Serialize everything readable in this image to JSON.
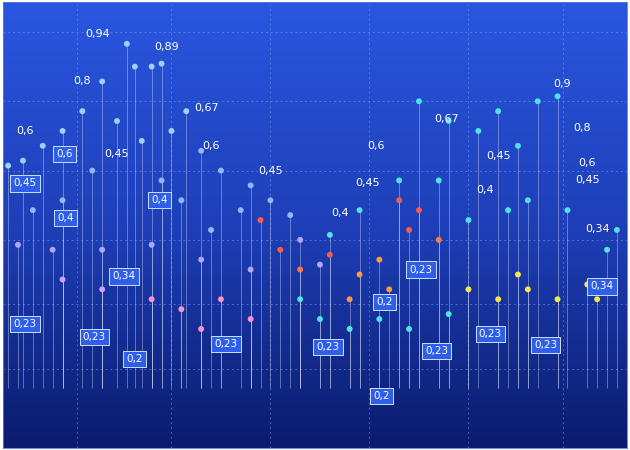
{
  "chart_data": {
    "type": "scatter",
    "x": [
      125,
      150,
      160,
      133,
      100,
      80,
      60,
      40,
      20,
      5,
      115,
      140,
      170,
      185,
      200,
      220,
      250,
      270,
      290,
      240,
      210,
      180,
      160,
      90,
      60,
      30,
      15,
      50,
      100,
      150,
      200,
      250,
      300,
      320,
      260,
      280,
      300,
      330,
      360,
      390,
      400,
      410,
      420,
      440,
      380,
      350,
      420,
      450,
      480,
      500,
      520,
      540,
      560,
      510,
      470,
      440,
      400,
      360,
      330,
      300,
      320,
      350,
      380,
      410,
      450,
      470,
      500,
      530,
      560,
      590,
      600,
      520,
      150,
      180,
      220,
      250,
      200,
      100,
      60,
      530,
      570,
      610,
      620
    ],
    "values": [
      408,
      385,
      388,
      385,
      370,
      340,
      320,
      305,
      290,
      285,
      330,
      310,
      320,
      340,
      300,
      280,
      265,
      250,
      235,
      240,
      220,
      250,
      270,
      280,
      250,
      240,
      205,
      200,
      200,
      205,
      190,
      180,
      210,
      185,
      230,
      200,
      180,
      195,
      175,
      160,
      250,
      220,
      240,
      210,
      190,
      150,
      350,
      330,
      320,
      340,
      305,
      350,
      355,
      240,
      230,
      270,
      270,
      240,
      215,
      150,
      130,
      120,
      130,
      120,
      135,
      160,
      150,
      160,
      150,
      165,
      150,
      175,
      150,
      140,
      150,
      130,
      120,
      160,
      170,
      250,
      240,
      200,
      220
    ],
    "colors": [
      "#9fd0ff",
      "#9fd0ff",
      "#9fd0ff",
      "#9fd0ff",
      "#9fd0ff",
      "#9fd0ff",
      "#9fd0ff",
      "#9fd0ff",
      "#9fd0ff",
      "#9fd0ff",
      "#9fd0ff",
      "#9fd0ff",
      "#9fd0ff",
      "#9fd0ff",
      "#8fb8ff",
      "#8fb8ff",
      "#8fb8ff",
      "#8fb8ff",
      "#8fb8ff",
      "#8fb8ff",
      "#8fb8ff",
      "#8fb8ff",
      "#8fb8ff",
      "#8fb8ff",
      "#8fb8ff",
      "#8fb8ff",
      "#b0a8ff",
      "#b0a8ff",
      "#b0a8ff",
      "#b0a8ff",
      "#b0a8ff",
      "#b0a8ff",
      "#b0a8ff",
      "#b0a8ff",
      "#ff5a4a",
      "#ff5a4a",
      "#ff7a4a",
      "#ff5a4a",
      "#ff9a3c",
      "#ff9a3c",
      "#ff5a4a",
      "#ff5a4a",
      "#ff5a4a",
      "#ff7a4a",
      "#ff9a3c",
      "#ff9a3c",
      "#4fe3e6",
      "#4fe3e6",
      "#4fe3e6",
      "#4fe3e6",
      "#4fe3e6",
      "#4fe3e6",
      "#4fe3e6",
      "#4fe3e6",
      "#4fe3e6",
      "#4fe3e6",
      "#4fe3e6",
      "#4fe3e6",
      "#4fe3e6",
      "#4fe3e6",
      "#4fe3e6",
      "#4fe3e6",
      "#4fe3e6",
      "#4fe3e6",
      "#4fe3e6",
      "#f5e84a",
      "#f5e84a",
      "#f5e84a",
      "#f5e84a",
      "#f5e84a",
      "#f5e84a",
      "#f5e84a",
      "#ff8fd0",
      "#ff8fd0",
      "#ff8fd0",
      "#ff8fd0",
      "#ff8fd0",
      "#d0a0ff",
      "#d0a0ff",
      "#4fe3e6",
      "#4fe3e6",
      "#4fe3e6",
      "#4fe3e6"
    ],
    "baseline": 60,
    "xlim": [
      0,
      630
    ],
    "ylim": [
      0,
      450
    ],
    "xticks": [
      75,
      170,
      270,
      370,
      470,
      565
    ],
    "yticks": [
      80,
      145,
      210,
      280,
      350,
      420
    ],
    "grid": true,
    "tick_labels": false,
    "annotations": [
      {
        "text": "0,94",
        "x": 95,
        "y": 418
      },
      {
        "text": "0,89",
        "x": 165,
        "y": 405
      },
      {
        "text": "0,8",
        "x": 80,
        "y": 370
      },
      {
        "text": "0,67",
        "x": 205,
        "y": 343
      },
      {
        "text": "0,6",
        "x": 22,
        "y": 320
      },
      {
        "text": "0,45",
        "x": 115,
        "y": 297
      },
      {
        "text": "0,6",
        "x": 210,
        "y": 305
      },
      {
        "text": "0,45",
        "x": 270,
        "y": 280
      },
      {
        "text": "0,4",
        "x": 340,
        "y": 237
      },
      {
        "text": "0,6",
        "x": 377,
        "y": 305
      },
      {
        "text": "0,45",
        "x": 368,
        "y": 267
      },
      {
        "text": "0,67",
        "x": 448,
        "y": 332
      },
      {
        "text": "0,45",
        "x": 500,
        "y": 295
      },
      {
        "text": "0,4",
        "x": 487,
        "y": 260
      },
      {
        "text": "0,9",
        "x": 565,
        "y": 367
      },
      {
        "text": "0,8",
        "x": 585,
        "y": 323
      },
      {
        "text": "0,6",
        "x": 590,
        "y": 288
      },
      {
        "text": "0,45",
        "x": 590,
        "y": 270
      },
      {
        "text": "0,34",
        "x": 600,
        "y": 221
      }
    ],
    "box_labels": [
      {
        "text": "0,6",
        "x": 62,
        "y": 297
      },
      {
        "text": "0,45",
        "x": 22,
        "y": 267
      },
      {
        "text": "0,4",
        "x": 63,
        "y": 232
      },
      {
        "text": "0,4",
        "x": 158,
        "y": 250
      },
      {
        "text": "0,34",
        "x": 122,
        "y": 173
      },
      {
        "text": "0,23",
        "x": 22,
        "y": 125
      },
      {
        "text": "0,23",
        "x": 92,
        "y": 112
      },
      {
        "text": "0,2",
        "x": 133,
        "y": 90
      },
      {
        "text": "0,23",
        "x": 225,
        "y": 105
      },
      {
        "text": "0,23",
        "x": 328,
        "y": 102
      },
      {
        "text": "0,2",
        "x": 385,
        "y": 147
      },
      {
        "text": "0,23",
        "x": 422,
        "y": 180
      },
      {
        "text": "0,23",
        "x": 438,
        "y": 98
      },
      {
        "text": "0,23",
        "x": 492,
        "y": 115
      },
      {
        "text": "0,23",
        "x": 548,
        "y": 104
      },
      {
        "text": "0,2",
        "x": 382,
        "y": 52
      },
      {
        "text": "0,34",
        "x": 605,
        "y": 163
      }
    ]
  }
}
